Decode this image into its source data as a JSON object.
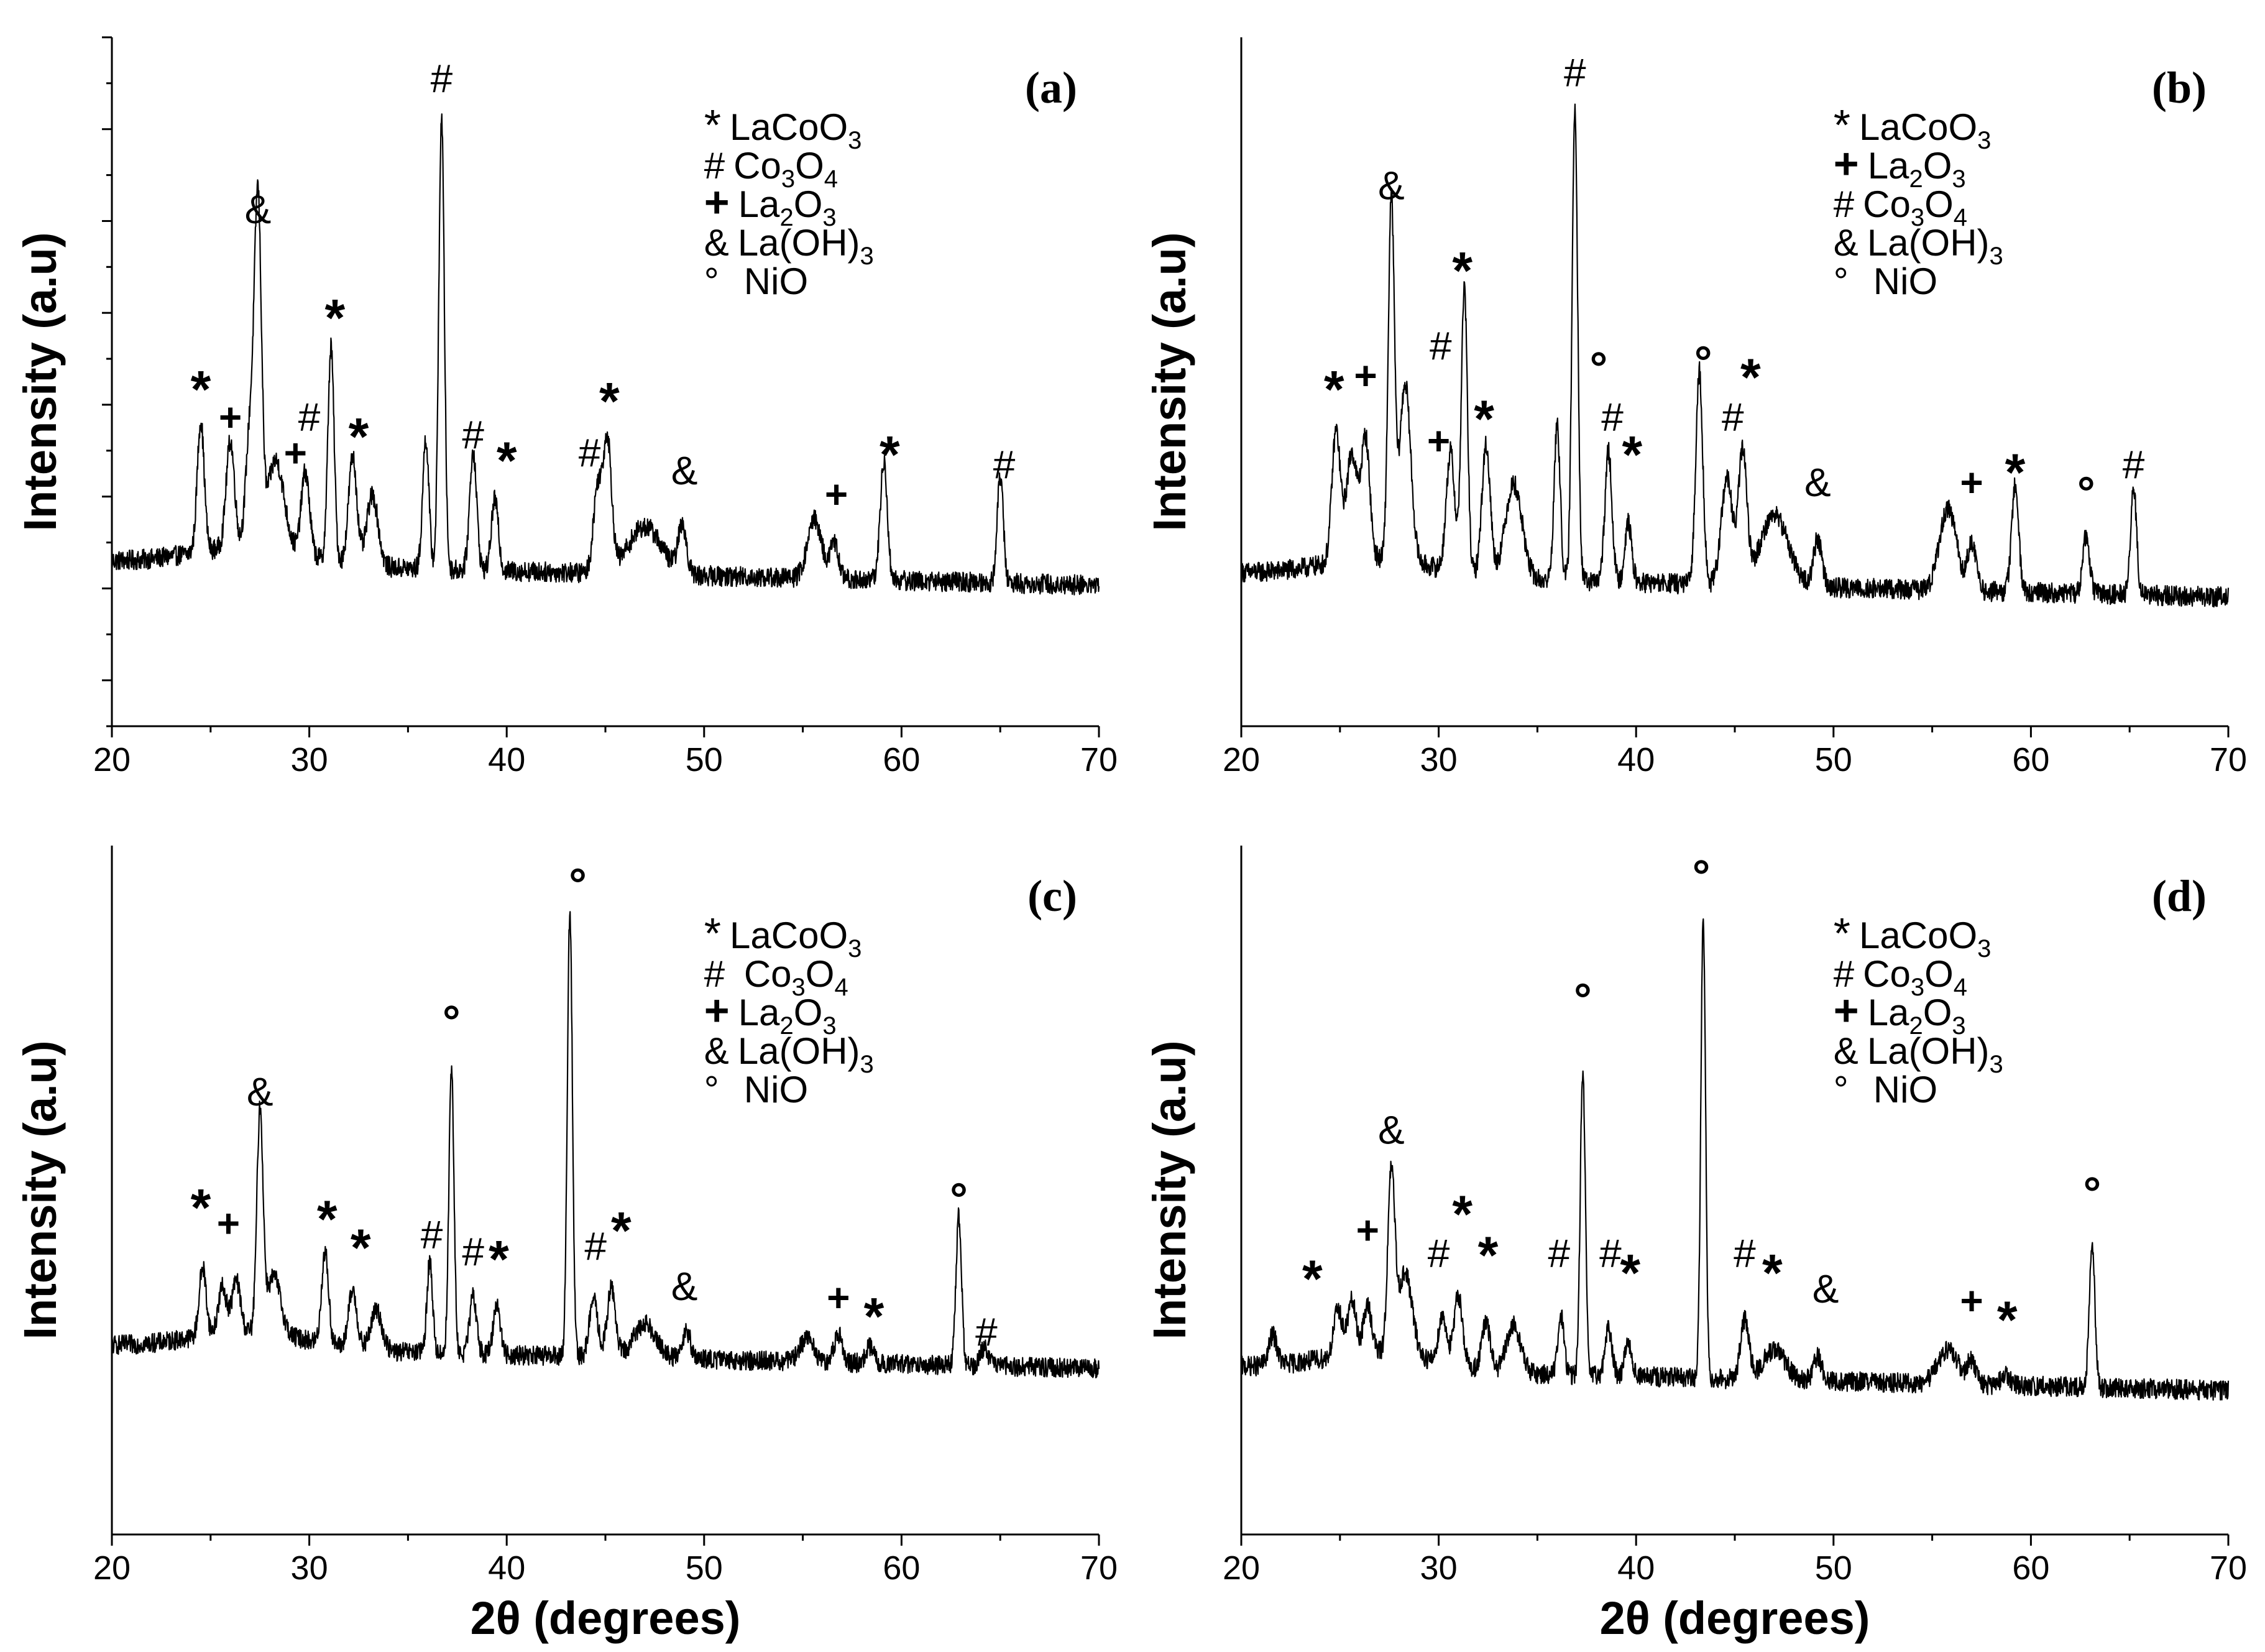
{
  "figure": {
    "title": ""
  },
  "chart_data": [
    {
      "type": "line",
      "panel": "(a)",
      "xlabel": "",
      "ylabel": "Intensity (a.u)",
      "xlim": [
        20,
        70
      ],
      "x_ticks": [
        "20",
        "30",
        "40",
        "50",
        "60",
        "70"
      ],
      "ylim": [
        0,
        100
      ],
      "y_ticks_shown": false,
      "legend": [
        {
          "symbol": "*",
          "name": "LaCoO",
          "sub": "3",
          "tail": ""
        },
        {
          "symbol": "#",
          "name": "Co",
          "sub": "3",
          "tail": "O",
          "sub2": "4"
        },
        {
          "symbol": "+",
          "name": "La",
          "sub": "2",
          "tail": "O",
          "sub2": "3"
        },
        {
          "symbol": "&",
          "name": "La(OH)",
          "sub": "3",
          "tail": ""
        },
        {
          "symbol": "°",
          "name": "NiO",
          "sub": "",
          "tail": ""
        }
      ],
      "baseline": 18,
      "peaks": [
        {
          "x": 24.5,
          "h": 22,
          "w": 0.25
        },
        {
          "x": 26.0,
          "h": 18,
          "w": 0.3
        },
        {
          "x": 27.0,
          "h": 20,
          "w": 0.3
        },
        {
          "x": 27.4,
          "h": 56,
          "w": 0.25
        },
        {
          "x": 28.3,
          "h": 15,
          "w": 0.6
        },
        {
          "x": 29.8,
          "h": 14,
          "w": 0.3
        },
        {
          "x": 31.1,
          "h": 36,
          "w": 0.22
        },
        {
          "x": 32.2,
          "h": 18,
          "w": 0.3
        },
        {
          "x": 33.2,
          "h": 12,
          "w": 0.4
        },
        {
          "x": 35.9,
          "h": 22,
          "w": 0.22
        },
        {
          "x": 36.7,
          "h": 76,
          "w": 0.2
        },
        {
          "x": 38.3,
          "h": 20,
          "w": 0.25
        },
        {
          "x": 39.4,
          "h": 12,
          "w": 0.25
        },
        {
          "x": 44.6,
          "h": 14,
          "w": 0.3
        },
        {
          "x": 45.1,
          "h": 22,
          "w": 0.3
        },
        {
          "x": 47.0,
          "h": 8,
          "w": 1.2
        },
        {
          "x": 48.9,
          "h": 8,
          "w": 0.3
        },
        {
          "x": 55.6,
          "h": 10,
          "w": 0.5
        },
        {
          "x": 56.6,
          "h": 6,
          "w": 0.3
        },
        {
          "x": 59.1,
          "h": 20,
          "w": 0.25
        },
        {
          "x": 65.0,
          "h": 18,
          "w": 0.22
        }
      ],
      "markers": [
        {
          "x": 24.5,
          "y": 44,
          "s": "*"
        },
        {
          "x": 26.0,
          "y": 40,
          "s": "+"
        },
        {
          "x": 27.4,
          "y": 75,
          "s": "&"
        },
        {
          "x": 29.3,
          "y": 34,
          "s": "+"
        },
        {
          "x": 30.0,
          "y": 40,
          "s": "#"
        },
        {
          "x": 31.3,
          "y": 56,
          "s": "*"
        },
        {
          "x": 32.5,
          "y": 36,
          "s": "*"
        },
        {
          "x": 36.7,
          "y": 97,
          "s": "#"
        },
        {
          "x": 38.3,
          "y": 37,
          "s": "#"
        },
        {
          "x": 40.0,
          "y": 32,
          "s": "*"
        },
        {
          "x": 44.2,
          "y": 34,
          "s": "#"
        },
        {
          "x": 45.2,
          "y": 42,
          "s": "*"
        },
        {
          "x": 49.0,
          "y": 31,
          "s": "&"
        },
        {
          "x": 56.7,
          "y": 27,
          "s": "+"
        },
        {
          "x": 59.4,
          "y": 33,
          "s": "*"
        },
        {
          "x": 65.2,
          "y": 32,
          "s": "#"
        }
      ]
    },
    {
      "type": "line",
      "panel": "(b)",
      "xlabel": "",
      "ylabel": "Intensity (a.u)",
      "xlim": [
        20,
        70
      ],
      "x_ticks": [
        "20",
        "30",
        "40",
        "50",
        "60",
        "70"
      ],
      "ylim": [
        0,
        100
      ],
      "y_ticks_shown": false,
      "legend": [
        {
          "symbol": "*",
          "name": "LaCoO",
          "sub": "3",
          "tail": ""
        },
        {
          "symbol": "+",
          "name": "La",
          "sub": "2",
          "tail": "O",
          "sub2": "3"
        },
        {
          "symbol": "#",
          "name": "Co",
          "sub": "3",
          "tail": "O",
          "sub2": "4"
        },
        {
          "symbol": "&",
          "name": "La(OH)",
          "sub": "3",
          "tail": ""
        },
        {
          "symbol": "°",
          "name": "NiO",
          "sub": "",
          "tail": ""
        }
      ],
      "baseline": 16,
      "peaks": [
        {
          "x": 24.8,
          "h": 22,
          "w": 0.3
        },
        {
          "x": 25.6,
          "h": 18,
          "w": 0.4
        },
        {
          "x": 26.3,
          "h": 20,
          "w": 0.3
        },
        {
          "x": 27.6,
          "h": 60,
          "w": 0.22
        },
        {
          "x": 28.3,
          "h": 30,
          "w": 0.4
        },
        {
          "x": 30.6,
          "h": 20,
          "w": 0.3
        },
        {
          "x": 31.3,
          "h": 48,
          "w": 0.22
        },
        {
          "x": 32.4,
          "h": 22,
          "w": 0.3
        },
        {
          "x": 33.8,
          "h": 16,
          "w": 0.6
        },
        {
          "x": 36.0,
          "h": 26,
          "w": 0.22
        },
        {
          "x": 36.9,
          "h": 80,
          "w": 0.2
        },
        {
          "x": 38.6,
          "h": 22,
          "w": 0.25
        },
        {
          "x": 39.6,
          "h": 10,
          "w": 0.25
        },
        {
          "x": 43.2,
          "h": 36,
          "w": 0.25
        },
        {
          "x": 44.6,
          "h": 18,
          "w": 0.4
        },
        {
          "x": 45.4,
          "h": 22,
          "w": 0.3
        },
        {
          "x": 47.0,
          "h": 12,
          "w": 1.0
        },
        {
          "x": 49.2,
          "h": 8,
          "w": 0.3
        },
        {
          "x": 55.8,
          "h": 14,
          "w": 0.6
        },
        {
          "x": 57.0,
          "h": 8,
          "w": 0.3
        },
        {
          "x": 59.2,
          "h": 18,
          "w": 0.25
        },
        {
          "x": 62.8,
          "h": 10,
          "w": 0.25
        },
        {
          "x": 65.2,
          "h": 18,
          "w": 0.22
        }
      ],
      "markers": [
        {
          "x": 24.7,
          "y": 44,
          "s": "*"
        },
        {
          "x": 26.3,
          "y": 47,
          "s": "+"
        },
        {
          "x": 27.6,
          "y": 79,
          "s": "&"
        },
        {
          "x": 30.0,
          "y": 36,
          "s": "+"
        },
        {
          "x": 30.1,
          "y": 52,
          "s": "#"
        },
        {
          "x": 31.2,
          "y": 64,
          "s": "*"
        },
        {
          "x": 32.3,
          "y": 39,
          "s": "*"
        },
        {
          "x": 36.9,
          "y": 98,
          "s": "#"
        },
        {
          "x": 38.1,
          "y": 48,
          "s": "°"
        },
        {
          "x": 38.8,
          "y": 40,
          "s": "#"
        },
        {
          "x": 39.8,
          "y": 33,
          "s": "*"
        },
        {
          "x": 43.4,
          "y": 49,
          "s": "°"
        },
        {
          "x": 44.9,
          "y": 40,
          "s": "#"
        },
        {
          "x": 45.8,
          "y": 46,
          "s": "*"
        },
        {
          "x": 49.2,
          "y": 29,
          "s": "&"
        },
        {
          "x": 57.0,
          "y": 29,
          "s": "+"
        },
        {
          "x": 59.2,
          "y": 30,
          "s": "*"
        },
        {
          "x": 62.8,
          "y": 27,
          "s": "°"
        },
        {
          "x": 65.2,
          "y": 32,
          "s": "#"
        }
      ]
    },
    {
      "type": "line",
      "panel": "(c)",
      "xlabel": "2θ (degrees)",
      "ylabel": "Intensity (a.u)",
      "xlim": [
        20,
        70
      ],
      "x_ticks": [
        "20",
        "30",
        "40",
        "50",
        "60",
        "70"
      ],
      "ylim": [
        0,
        100
      ],
      "y_ticks_shown": false,
      "legend": [
        {
          "symbol": "*",
          "name": "LaCoO",
          "sub": "3",
          "tail": ""
        },
        {
          "symbol": "#",
          "name": " Co",
          "sub": "3",
          "tail": "O",
          "sub2": "4"
        },
        {
          "symbol": "+",
          "name": "La",
          "sub": "2",
          "tail": "O",
          "sub2": "3"
        },
        {
          "symbol": "&",
          "name": "La(OH)",
          "sub": "3",
          "tail": ""
        },
        {
          "symbol": "°",
          "name": "NiO",
          "sub": "",
          "tail": ""
        }
      ],
      "baseline": 18,
      "peaks": [
        {
          "x": 24.6,
          "h": 12,
          "w": 0.25
        },
        {
          "x": 25.6,
          "h": 8,
          "w": 0.3
        },
        {
          "x": 26.3,
          "h": 9,
          "w": 0.3
        },
        {
          "x": 27.5,
          "h": 38,
          "w": 0.22
        },
        {
          "x": 28.2,
          "h": 10,
          "w": 0.5
        },
        {
          "x": 30.8,
          "h": 16,
          "w": 0.25
        },
        {
          "x": 32.2,
          "h": 10,
          "w": 0.3
        },
        {
          "x": 33.4,
          "h": 7,
          "w": 0.4
        },
        {
          "x": 36.1,
          "h": 16,
          "w": 0.2
        },
        {
          "x": 37.2,
          "h": 50,
          "w": 0.18
        },
        {
          "x": 38.3,
          "h": 10,
          "w": 0.25
        },
        {
          "x": 39.5,
          "h": 9,
          "w": 0.25
        },
        {
          "x": 43.2,
          "h": 78,
          "w": 0.18
        },
        {
          "x": 44.4,
          "h": 10,
          "w": 0.3
        },
        {
          "x": 45.3,
          "h": 12,
          "w": 0.3
        },
        {
          "x": 47.0,
          "h": 6,
          "w": 0.8
        },
        {
          "x": 49.1,
          "h": 5,
          "w": 0.3
        },
        {
          "x": 55.2,
          "h": 4,
          "w": 0.5
        },
        {
          "x": 56.8,
          "h": 5,
          "w": 0.3
        },
        {
          "x": 58.4,
          "h": 3,
          "w": 0.3
        },
        {
          "x": 62.9,
          "h": 26,
          "w": 0.2
        },
        {
          "x": 64.2,
          "h": 3,
          "w": 0.3
        }
      ],
      "markers": [
        {
          "x": 24.5,
          "y": 39,
          "s": "*"
        },
        {
          "x": 25.9,
          "y": 37,
          "s": "+"
        },
        {
          "x": 27.5,
          "y": 60,
          "s": "&"
        },
        {
          "x": 30.9,
          "y": 37,
          "s": "*"
        },
        {
          "x": 32.6,
          "y": 32,
          "s": "*"
        },
        {
          "x": 36.2,
          "y": 35,
          "s": "#"
        },
        {
          "x": 37.2,
          "y": 72,
          "s": "°"
        },
        {
          "x": 38.3,
          "y": 32,
          "s": "#"
        },
        {
          "x": 39.6,
          "y": 30,
          "s": "*"
        },
        {
          "x": 43.6,
          "y": 96,
          "s": "°"
        },
        {
          "x": 44.5,
          "y": 33,
          "s": "#"
        },
        {
          "x": 45.8,
          "y": 35,
          "s": "*"
        },
        {
          "x": 49.0,
          "y": 26,
          "s": "&"
        },
        {
          "x": 56.8,
          "y": 24,
          "s": "+"
        },
        {
          "x": 58.6,
          "y": 20,
          "s": "*"
        },
        {
          "x": 62.9,
          "y": 41,
          "s": "°"
        },
        {
          "x": 64.3,
          "y": 18,
          "s": "#"
        }
      ]
    },
    {
      "type": "line",
      "panel": "(d)",
      "xlabel": "2θ (degrees)",
      "ylabel": "Intensity (a.u)",
      "xlim": [
        20,
        70
      ],
      "x_ticks": [
        "20",
        "30",
        "40",
        "50",
        "60",
        "70"
      ],
      "ylim": [
        0,
        100
      ],
      "y_ticks_shown": false,
      "legend": [
        {
          "symbol": "*",
          "name": "LaCoO",
          "sub": "3",
          "tail": ""
        },
        {
          "symbol": "#",
          "name": "Co",
          "sub": "3",
          "tail": "O",
          "sub2": "4"
        },
        {
          "symbol": "+",
          "name": "La",
          "sub": "2",
          "tail": "O",
          "sub2": "3"
        },
        {
          "symbol": "&",
          "name": "La(OH)",
          "sub": "3",
          "tail": ""
        },
        {
          "symbol": "°",
          "name": "NiO",
          "sub": "",
          "tail": ""
        }
      ],
      "baseline": 16,
      "peaks": [
        {
          "x": 21.6,
          "h": 5,
          "w": 0.3
        },
        {
          "x": 24.9,
          "h": 8,
          "w": 0.3
        },
        {
          "x": 25.6,
          "h": 9,
          "w": 0.3
        },
        {
          "x": 26.4,
          "h": 8,
          "w": 0.3
        },
        {
          "x": 27.6,
          "h": 30,
          "w": 0.25
        },
        {
          "x": 28.3,
          "h": 14,
          "w": 0.5
        },
        {
          "x": 30.2,
          "h": 8,
          "w": 0.3
        },
        {
          "x": 31.0,
          "h": 12,
          "w": 0.3
        },
        {
          "x": 32.4,
          "h": 8,
          "w": 0.3
        },
        {
          "x": 33.8,
          "h": 8,
          "w": 0.5
        },
        {
          "x": 36.2,
          "h": 10,
          "w": 0.22
        },
        {
          "x": 37.3,
          "h": 52,
          "w": 0.18
        },
        {
          "x": 38.6,
          "h": 8,
          "w": 0.25
        },
        {
          "x": 39.6,
          "h": 6,
          "w": 0.25
        },
        {
          "x": 43.4,
          "h": 78,
          "w": 0.17
        },
        {
          "x": 45.5,
          "h": 10,
          "w": 0.3
        },
        {
          "x": 47.0,
          "h": 5,
          "w": 0.8
        },
        {
          "x": 49.2,
          "h": 4,
          "w": 0.3
        },
        {
          "x": 55.8,
          "h": 6,
          "w": 0.7
        },
        {
          "x": 57.0,
          "h": 4,
          "w": 0.3
        },
        {
          "x": 58.7,
          "h": 2,
          "w": 0.3
        },
        {
          "x": 63.1,
          "h": 24,
          "w": 0.2
        }
      ],
      "markers": [
        {
          "x": 23.6,
          "y": 28,
          "s": "*"
        },
        {
          "x": 26.4,
          "y": 37,
          "s": "+"
        },
        {
          "x": 27.6,
          "y": 54,
          "s": "&"
        },
        {
          "x": 30.0,
          "y": 33,
          "s": "#"
        },
        {
          "x": 31.2,
          "y": 39,
          "s": "*"
        },
        {
          "x": 32.5,
          "y": 32,
          "s": "*"
        },
        {
          "x": 36.1,
          "y": 33,
          "s": "#"
        },
        {
          "x": 37.3,
          "y": 76,
          "s": "°"
        },
        {
          "x": 38.7,
          "y": 33,
          "s": "#"
        },
        {
          "x": 39.7,
          "y": 29,
          "s": "*"
        },
        {
          "x": 43.3,
          "y": 97,
          "s": "°"
        },
        {
          "x": 45.5,
          "y": 33,
          "s": "#"
        },
        {
          "x": 46.9,
          "y": 29,
          "s": "*"
        },
        {
          "x": 49.6,
          "y": 27,
          "s": "&"
        },
        {
          "x": 57.0,
          "y": 25,
          "s": "+"
        },
        {
          "x": 58.8,
          "y": 21,
          "s": "*"
        },
        {
          "x": 63.1,
          "y": 43,
          "s": "°"
        }
      ]
    }
  ]
}
